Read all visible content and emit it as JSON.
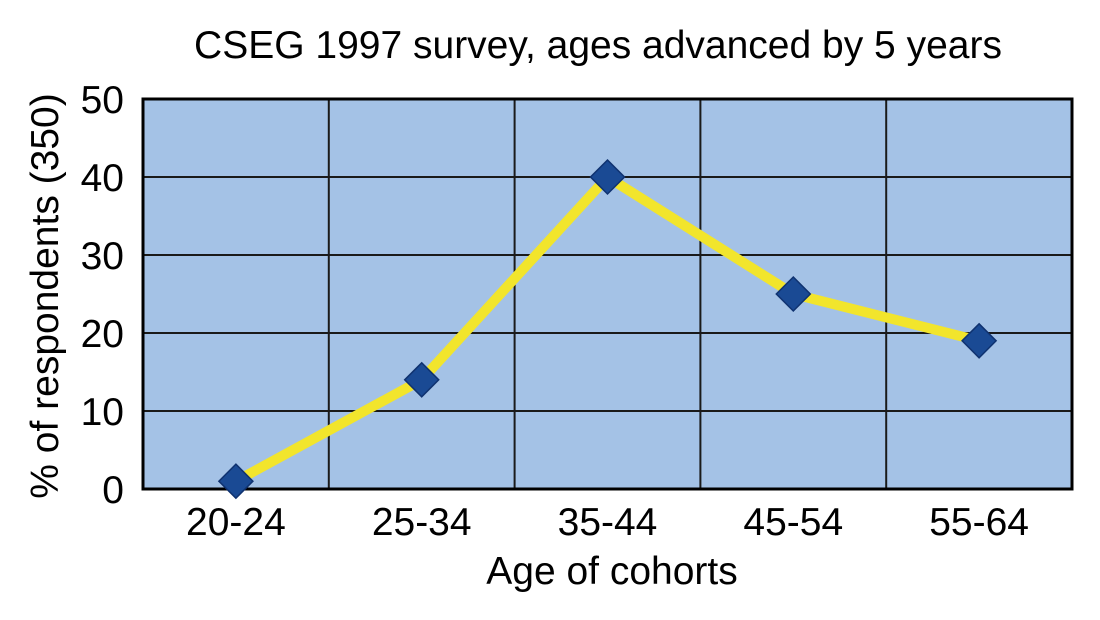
{
  "chart_data": {
    "type": "line",
    "title": "CSEG 1997 survey, ages advanced by 5 years",
    "xlabel": "Age of cohorts",
    "ylabel": "% of respondents (350)",
    "categories": [
      "20-24",
      "25-34",
      "35-44",
      "45-54",
      "55-64"
    ],
    "series": [
      {
        "values": [
          1,
          14,
          40,
          25,
          19
        ]
      }
    ],
    "ylim": [
      0,
      50
    ],
    "yticks": [
      0,
      10,
      20,
      30,
      40,
      50
    ],
    "grid": true,
    "colors": {
      "plot_background": "#a4c2e6",
      "grid": "#1a1a1a",
      "line": "#f2e52c",
      "marker": "#1a4a94"
    }
  }
}
